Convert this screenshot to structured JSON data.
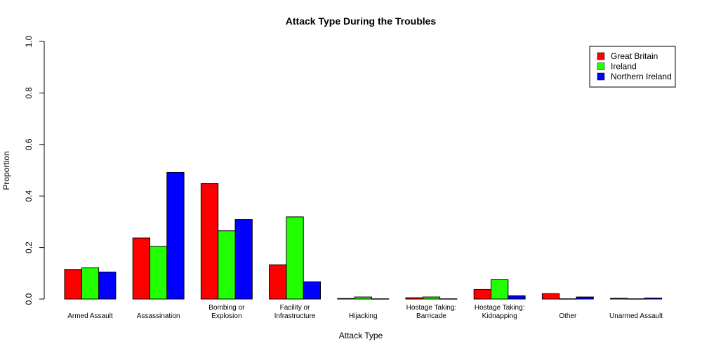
{
  "chart_data": {
    "type": "bar",
    "title": "Attack Type During the Troubles",
    "xlabel": "Attack Type",
    "ylabel": "Proportion",
    "ylim": [
      0,
      1
    ],
    "yticks": [
      "0.0",
      "0.2",
      "0.4",
      "0.6",
      "0.8",
      "1.0"
    ],
    "grid": false,
    "legend_position": "top-right",
    "categories": [
      "Armed Assault",
      "Assassination",
      "Bombing or\nExplosion",
      "Facility or\nInfrastructure",
      "Hijacking",
      "Hostage Taking:\nBarricade",
      "Hostage Taking:\nKidnapping",
      "Other",
      "Unarmed Assault"
    ],
    "series": [
      {
        "name": "Great Britain",
        "color": "#ff0000",
        "values": [
          0.115,
          0.237,
          0.448,
          0.133,
          0.002,
          0.005,
          0.037,
          0.021,
          0.003
        ]
      },
      {
        "name": "Ireland",
        "color": "#22ff00",
        "values": [
          0.121,
          0.204,
          0.265,
          0.319,
          0.008,
          0.008,
          0.075,
          0.001,
          0.001
        ]
      },
      {
        "name": "Northern Ireland",
        "color": "#0000ff",
        "values": [
          0.105,
          0.492,
          0.309,
          0.067,
          0.001,
          0.001,
          0.013,
          0.008,
          0.004
        ]
      }
    ]
  }
}
